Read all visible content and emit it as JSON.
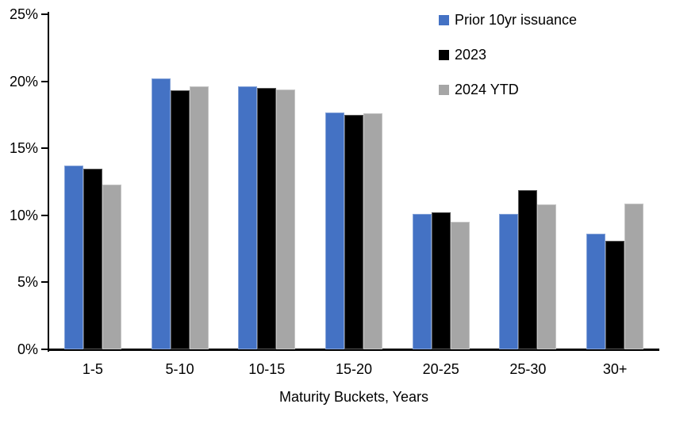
{
  "chart_data": {
    "type": "bar",
    "title": "",
    "xlabel": "Maturity Buckets, Years",
    "ylabel": "",
    "categories": [
      "1-5",
      "5-10",
      "10-15",
      "15-20",
      "20-25",
      "25-30",
      "30+"
    ],
    "series": [
      {
        "name": "Prior 10yr issuance",
        "color": "#4472C4",
        "values": [
          13.7,
          20.2,
          19.6,
          17.7,
          10.1,
          10.1,
          8.6
        ]
      },
      {
        "name": "2023",
        "color": "#000000",
        "values": [
          13.5,
          19.3,
          19.5,
          17.5,
          10.2,
          11.9,
          8.1
        ]
      },
      {
        "name": "2024 YTD",
        "color": "#A6A6A6",
        "values": [
          12.3,
          19.6,
          19.4,
          17.6,
          9.5,
          10.8,
          10.9
        ]
      }
    ],
    "ylim": [
      0,
      25
    ],
    "ytick_interval": 5,
    "ytick_labels": [
      "0%",
      "5%",
      "10%",
      "15%",
      "20%",
      "25%"
    ],
    "grid": false,
    "legend_position": "top-right",
    "axis_color": "#000000"
  }
}
